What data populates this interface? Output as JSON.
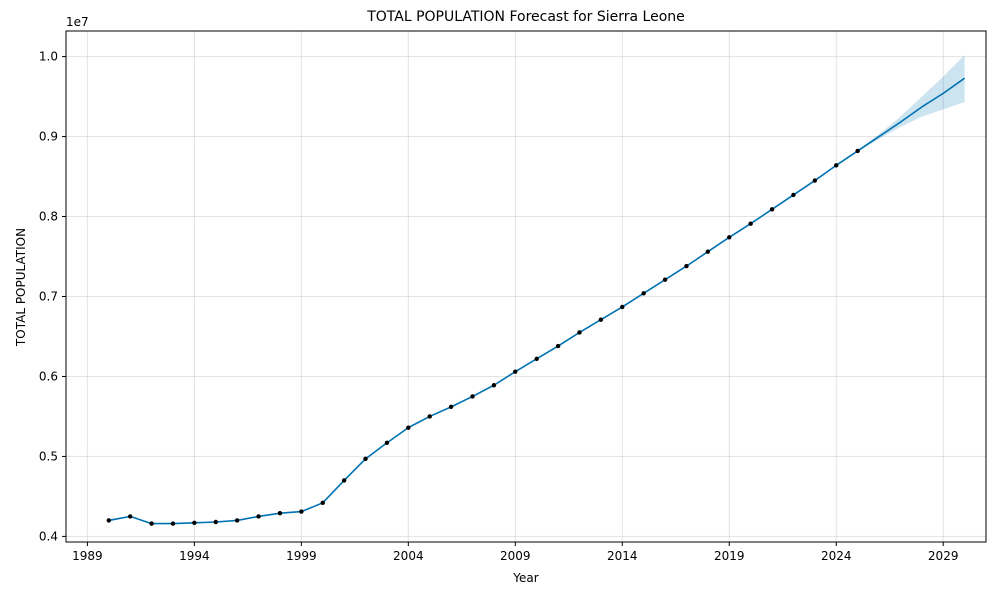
{
  "chart_data": {
    "type": "line",
    "title": "TOTAL POPULATION Forecast for Sierra Leone",
    "xlabel": "Year",
    "ylabel": "TOTAL POPULATION",
    "y_offset_label": "1e7",
    "xlim": [
      1988,
      2031
    ],
    "ylim": [
      3.93,
      10.32
    ],
    "x_ticks": [
      1989,
      1994,
      1999,
      2004,
      2009,
      2014,
      2019,
      2024,
      2029
    ],
    "y_ticks": [
      4.0,
      5.0,
      6.0,
      7.0,
      8.0,
      9.0,
      10.0
    ],
    "y_tick_labels": [
      "0.4",
      "0.5",
      "0.6",
      "0.7",
      "0.8",
      "0.9",
      "1.0"
    ],
    "grid": true,
    "colors": {
      "line": "#0072b2",
      "points": "#000000",
      "band": "#0072b2"
    },
    "observed": {
      "x": [
        1990,
        1991,
        1992,
        1993,
        1994,
        1995,
        1996,
        1997,
        1998,
        1999,
        2000,
        2001,
        2002,
        2003,
        2004,
        2005,
        2006,
        2007,
        2008,
        2009,
        2010,
        2011,
        2012,
        2013,
        2014,
        2015,
        2016,
        2017,
        2018,
        2019,
        2020,
        2021,
        2022,
        2023,
        2024,
        2025
      ],
      "y": [
        4.2,
        4.25,
        4.16,
        4.16,
        4.17,
        4.18,
        4.2,
        4.25,
        4.29,
        4.31,
        4.42,
        4.7,
        4.97,
        5.17,
        5.36,
        5.5,
        5.62,
        5.75,
        5.89,
        6.06,
        6.22,
        6.38,
        6.55,
        6.71,
        6.87,
        7.04,
        7.21,
        7.38,
        7.56,
        7.74,
        7.91,
        8.09,
        8.27,
        8.45,
        8.64,
        8.82
      ]
    },
    "forecast": {
      "x": [
        1990,
        1991,
        1992,
        1993,
        1994,
        1995,
        1996,
        1997,
        1998,
        1999,
        2000,
        2001,
        2002,
        2003,
        2004,
        2005,
        2006,
        2007,
        2008,
        2009,
        2010,
        2011,
        2012,
        2013,
        2014,
        2015,
        2016,
        2017,
        2018,
        2019,
        2020,
        2021,
        2022,
        2023,
        2024,
        2025,
        2026,
        2027,
        2028,
        2029,
        2030
      ],
      "y": [
        4.2,
        4.25,
        4.16,
        4.16,
        4.17,
        4.18,
        4.2,
        4.25,
        4.29,
        4.31,
        4.42,
        4.7,
        4.97,
        5.17,
        5.36,
        5.5,
        5.62,
        5.75,
        5.89,
        6.06,
        6.22,
        6.38,
        6.55,
        6.71,
        6.87,
        7.04,
        7.21,
        7.38,
        7.56,
        7.74,
        7.91,
        8.09,
        8.27,
        8.45,
        8.64,
        8.82,
        9.0,
        9.18,
        9.37,
        9.54,
        9.73
      ],
      "lower": [
        4.2,
        4.25,
        4.16,
        4.16,
        4.17,
        4.18,
        4.2,
        4.25,
        4.29,
        4.31,
        4.42,
        4.7,
        4.97,
        5.17,
        5.36,
        5.5,
        5.62,
        5.75,
        5.89,
        6.06,
        6.22,
        6.38,
        6.55,
        6.71,
        6.87,
        7.04,
        7.21,
        7.38,
        7.56,
        7.74,
        7.91,
        8.09,
        8.27,
        8.45,
        8.64,
        8.81,
        8.97,
        9.12,
        9.25,
        9.34,
        9.43
      ],
      "upper": [
        4.2,
        4.25,
        4.16,
        4.16,
        4.17,
        4.18,
        4.2,
        4.25,
        4.29,
        4.31,
        4.42,
        4.7,
        4.97,
        5.17,
        5.36,
        5.5,
        5.62,
        5.75,
        5.89,
        6.06,
        6.22,
        6.38,
        6.55,
        6.71,
        6.87,
        7.04,
        7.21,
        7.38,
        7.56,
        7.74,
        7.91,
        8.09,
        8.27,
        8.45,
        8.64,
        8.83,
        9.03,
        9.25,
        9.5,
        9.75,
        10.02
      ]
    }
  }
}
